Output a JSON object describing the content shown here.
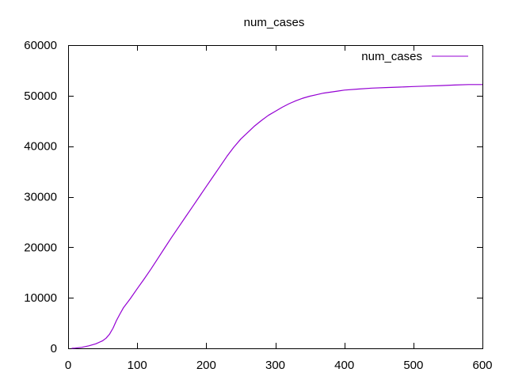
{
  "chart_data": {
    "type": "line",
    "title": "num_cases",
    "xlabel": "",
    "ylabel": "",
    "xlim": [
      0,
      600
    ],
    "ylim": [
      0,
      60000
    ],
    "x_ticks": [
      0,
      100,
      200,
      300,
      400,
      500,
      600
    ],
    "y_ticks": [
      0,
      10000,
      20000,
      30000,
      40000,
      50000,
      60000
    ],
    "x_tick_labels": [
      "0",
      "100",
      "200",
      "300",
      "400",
      "500",
      "600"
    ],
    "y_tick_labels": [
      "0",
      "10000",
      "20000",
      "30000",
      "40000",
      "50000",
      "60000"
    ],
    "grid": false,
    "legend_position": "top-right",
    "series": [
      {
        "name": "num_cases",
        "color": "#9400d3",
        "x": [
          5,
          10,
          20,
          30,
          40,
          50,
          55,
          60,
          65,
          70,
          75,
          80,
          90,
          100,
          110,
          120,
          130,
          140,
          150,
          160,
          170,
          180,
          190,
          200,
          210,
          220,
          230,
          240,
          250,
          260,
          270,
          280,
          290,
          300,
          310,
          320,
          330,
          340,
          350,
          360,
          370,
          380,
          390,
          400,
          420,
          440,
          460,
          480,
          500,
          520,
          540,
          560,
          580,
          600
        ],
        "y": [
          0,
          50,
          200,
          500,
          900,
          1500,
          2000,
          2800,
          4000,
          5500,
          6800,
          8000,
          9800,
          11800,
          13700,
          15700,
          17800,
          19900,
          22000,
          24000,
          26000,
          28000,
          30000,
          32000,
          34000,
          36000,
          38000,
          39800,
          41400,
          42700,
          44000,
          45100,
          46100,
          46900,
          47700,
          48400,
          49000,
          49500,
          49900,
          50200,
          50500,
          50700,
          50900,
          51100,
          51300,
          51500,
          51600,
          51700,
          51800,
          51900,
          52000,
          52100,
          52200,
          52200
        ]
      }
    ]
  }
}
